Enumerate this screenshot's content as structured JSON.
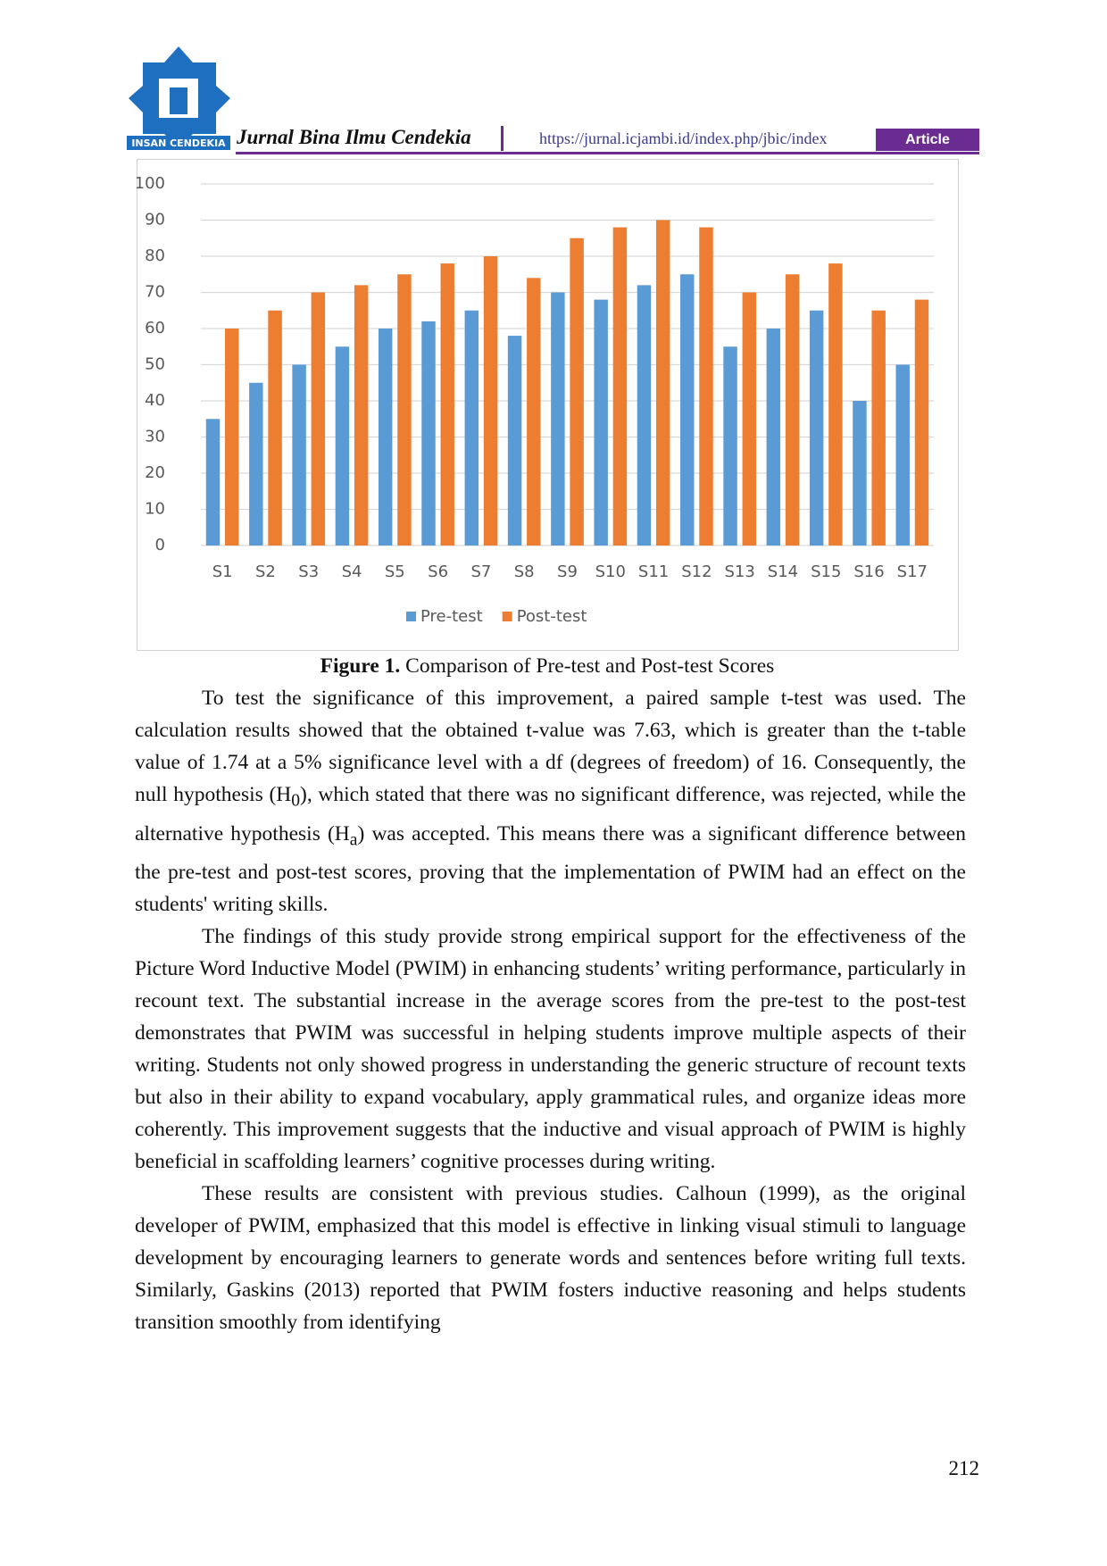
{
  "header": {
    "journal": "Jurnal Bina Ilmu Cendekia",
    "url": "https://jurnal.icjambi.id/index.php/jbic/index",
    "tag": "Article",
    "logo_text": "INSAN CENDEKIA"
  },
  "chart_data": {
    "type": "bar",
    "categories": [
      "S1",
      "S2",
      "S3",
      "S4",
      "S5",
      "S6",
      "S7",
      "S8",
      "S9",
      "S10",
      "S11",
      "S12",
      "S13",
      "S14",
      "S15",
      "S16",
      "S17"
    ],
    "series": [
      {
        "name": "Pre-test",
        "color": "#5b9bd5",
        "values": [
          35,
          45,
          50,
          55,
          60,
          62,
          65,
          58,
          70,
          68,
          72,
          75,
          55,
          60,
          65,
          40,
          50
        ]
      },
      {
        "name": "Post-test",
        "color": "#ed7d31",
        "values": [
          60,
          65,
          70,
          72,
          75,
          78,
          80,
          74,
          85,
          88,
          90,
          88,
          70,
          75,
          78,
          65,
          68
        ]
      }
    ],
    "ylim": [
      0,
      100
    ],
    "yticks": [
      0,
      10,
      20,
      30,
      40,
      50,
      60,
      70,
      80,
      90,
      100
    ],
    "grid": true,
    "legend": "bottom"
  },
  "caption": {
    "label": "Figure 1.",
    "text": "Comparison of Pre-test and Post-test Scores"
  },
  "paragraphs": [
    [
      "To test the significance of this improvement, a paired sample t-test was used. The calculation results showed that the obtained t-value was 7.63, which is greater than the t-table value of 1.74 at a 5% significance level with a df (degrees of freedom) of 16. Consequently, the null hypothesis (H",
      "0",
      "), which stated that there was no significant difference, was rejected, while the alternative hypothesis (H",
      "a",
      ") was accepted. This means there was a significant difference between the pre-test and post-test scores, proving that the implementation of PWIM had an effect on the students' writing skills."
    ],
    [
      "The findings of this study provide strong empirical support for the effectiveness of the Picture Word Inductive Model (PWIM) in enhancing students’ writing performance, particularly in recount text. The substantial increase in the average scores from the pre-test to the post-test demonstrates that PWIM was successful in helping students improve multiple aspects of their writing. Students not only showed progress in understanding the generic structure of recount texts but also in their ability to expand vocabulary, apply grammatical rules, and organize ideas more coherently. This improvement suggests that the inductive and visual approach of PWIM is highly beneficial in scaffolding learners’ cognitive processes during writing."
    ],
    [
      "These results are consistent with previous studies. Calhoun (1999), as the original developer of PWIM, emphasized that this model is effective in linking visual stimuli to language development by encouraging learners to generate words and sentences before writing full texts. Similarly, Gaskins (2013) reported that PWIM fosters inductive reasoning and helps students transition smoothly from identifying"
    ]
  ],
  "page_number": "212"
}
